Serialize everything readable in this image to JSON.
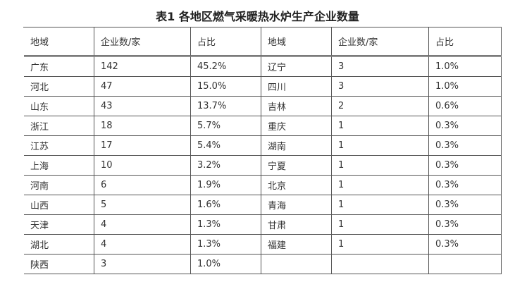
{
  "title": "表1 各地区燃气采暖热水炉生产企业数量",
  "table": {
    "header": [
      "地域",
      "企业数/家",
      "占比",
      "地域",
      "企业数/家",
      "占比"
    ],
    "rows": [
      [
        "广东",
        "142",
        "45.2%",
        "辽宁",
        "3",
        "1.0%"
      ],
      [
        "河北",
        "47",
        "15.0%",
        "四川",
        "3",
        "1.0%"
      ],
      [
        "山东",
        "43",
        "13.7%",
        "吉林",
        "2",
        "0.6%"
      ],
      [
        "浙江",
        "18",
        "5.7%",
        "重庆",
        "1",
        "0.3%"
      ],
      [
        "江苏",
        "17",
        "5.4%",
        "湖南",
        "1",
        "0.3%"
      ],
      [
        "上海",
        "10",
        "3.2%",
        "宁夏",
        "1",
        "0.3%"
      ],
      [
        "河南",
        "6",
        "1.9%",
        "北京",
        "1",
        "0.3%"
      ],
      [
        "山西",
        "5",
        "1.6%",
        "青海",
        "1",
        "0.3%"
      ],
      [
        "天津",
        "4",
        "1.3%",
        "甘肃",
        "1",
        "0.3%"
      ],
      [
        "湖北",
        "4",
        "1.3%",
        "福建",
        "1",
        "0.3%"
      ],
      [
        "陕西",
        "3",
        "1.0%"
      ]
    ]
  }
}
